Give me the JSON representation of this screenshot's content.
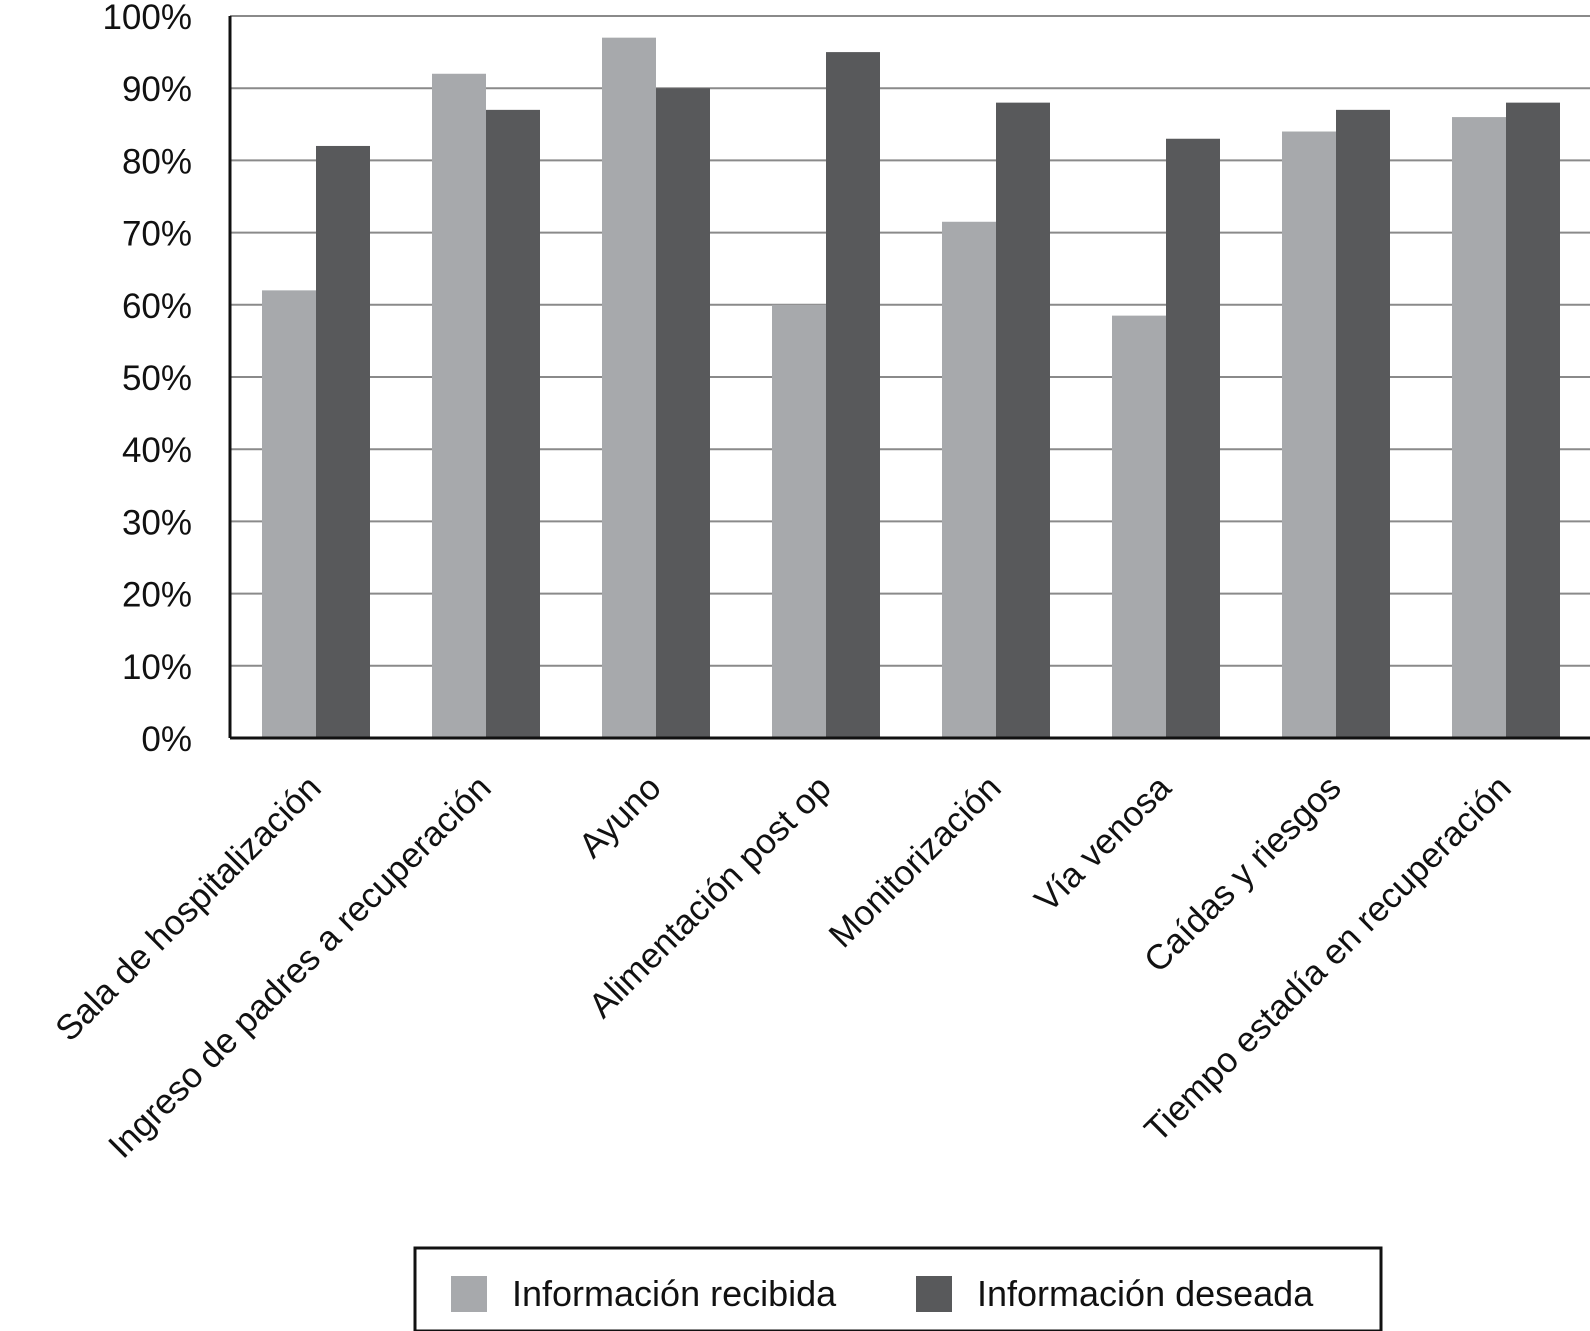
{
  "chart_data": {
    "type": "bar",
    "title": "",
    "xlabel": "",
    "ylabel": "",
    "ylim": [
      0,
      100
    ],
    "y_ticks": [
      "0%",
      "10%",
      "20%",
      "30%",
      "40%",
      "50%",
      "60%",
      "70%",
      "80%",
      "90%",
      "100%"
    ],
    "grid": true,
    "legend_placement": "bottom",
    "categories": [
      "Sala de hospitalización",
      "Ingreso de padres a recuperación",
      "Ayuno",
      "Alimentación post op",
      "Monitorización",
      "Vía venosa",
      "Caídas y riesgos",
      "Tiempo estadía en recuperación"
    ],
    "series": [
      {
        "name": "Información recibida",
        "color": "#a7a9ac",
        "values": [
          62,
          92,
          97,
          60,
          71.5,
          58.5,
          84,
          86
        ]
      },
      {
        "name": "Información deseada",
        "color": "#58595b",
        "values": [
          82,
          87,
          90,
          95,
          88,
          83,
          87,
          88
        ]
      }
    ]
  }
}
